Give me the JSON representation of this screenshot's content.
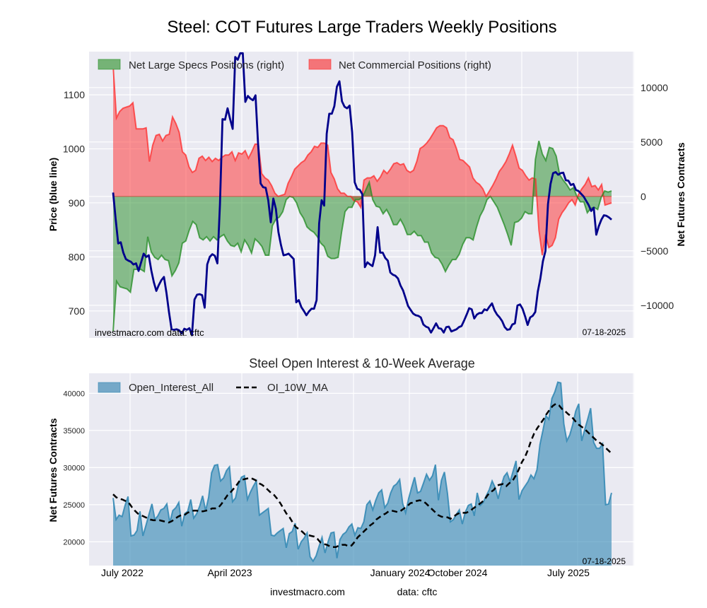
{
  "page": {
    "title": "Steel: COT Futures Large Traders Weekly Positions",
    "footer_site": "investmacro.com",
    "footer_source": "data: cftc"
  },
  "chart_data": [
    {
      "id": "positions",
      "type": "area",
      "title": "Steel: COT Futures Large Traders Weekly Positions",
      "ylabel_left": "Price (blue line)",
      "ylabel_right": "Net Futures Contracts",
      "ylim_left": [
        650,
        1180
      ],
      "ylim_right": [
        -13000,
        13300
      ],
      "yticks_left": [
        "700",
        "800",
        "900",
        "1000",
        "1100"
      ],
      "yticks_right": [
        "−10000",
        "−5000",
        "0",
        "5000",
        "10000"
      ],
      "ytick_values_left": [
        700,
        800,
        900,
        1000,
        1100
      ],
      "ytick_values_right": [
        -10000,
        -5000,
        0,
        5000,
        10000
      ],
      "grid": true,
      "legend_placement": "top-left",
      "legend": [
        "Net Large Specs Positions (right)",
        "Net Commercial Positions (right)"
      ],
      "annotation_left": "investmacro.com    data: cftc",
      "annotation_right": "07-18-2025",
      "colors": {
        "specs": "#228b22",
        "specs_fill": "#75b376",
        "commercial": "#ff2a2a",
        "commercial_fill": "#f47478",
        "price": "#00008b",
        "background": "#eaeaf2"
      },
      "series": [
        {
          "name": "Net Large Specs Positions (right)",
          "axis": "right",
          "values": [
            -12400,
            -7800,
            -8300,
            -8400,
            -8500,
            -8800,
            -6700,
            -6700,
            -6700,
            -6900,
            -3700,
            -5100,
            -5600,
            -5800,
            -5400,
            -5800,
            -5900,
            -7300,
            -6800,
            -6100,
            -4300,
            -4100,
            -3100,
            -2300,
            -2600,
            -3800,
            -4000,
            -3700,
            -4100,
            -3700,
            -4000,
            -3700,
            -3500,
            -4100,
            -4500,
            -4600,
            -4300,
            -5100,
            -4000,
            -4500,
            -5200,
            -3900,
            -4200,
            -4600,
            -5400,
            -5400,
            -2700,
            -2100,
            -1900,
            -1400,
            -300,
            0,
            -100,
            -600,
            -1500,
            -2000,
            -2800,
            -3100,
            -3300,
            -3700,
            -4300,
            -4600,
            -5500,
            -5700,
            -5700,
            -5600,
            -3300,
            -1400,
            -1000,
            -1000,
            -300,
            -300,
            -100,
            600,
            1300,
            -300,
            -900,
            -1000,
            -1600,
            -1200,
            -1800,
            -2600,
            -2600,
            -2100,
            -2700,
            -3500,
            -3500,
            -3200,
            -3600,
            -3600,
            -4200,
            -4200,
            -5200,
            -5600,
            -5700,
            -6200,
            -6900,
            -6300,
            -5800,
            -5800,
            -5300,
            -4400,
            -3800,
            -3800,
            -4000,
            -2800,
            -1800,
            -1200,
            -300,
            0,
            -500,
            -1000,
            -1800,
            -2600,
            -3500,
            -4500,
            -2400,
            -2300,
            -2000,
            -1400,
            -1600,
            -1600,
            3400,
            5100,
            3900,
            3300,
            4500,
            4400,
            3700,
            2000,
            1500,
            1100,
            600,
            800,
            0,
            -500,
            -500,
            -1500,
            -1100,
            -1000,
            -1200,
            -100,
            500,
            400,
            500
          ]
        },
        {
          "name": "Net Commercial Positions (right)",
          "axis": "right",
          "values": [
            12000,
            7200,
            7800,
            8100,
            8200,
            8300,
            8600,
            6200,
            6200,
            6200,
            6300,
            3200,
            4700,
            5600,
            5700,
            5100,
            5600,
            5700,
            7300,
            6700,
            5900,
            4100,
            3800,
            2700,
            2200,
            2400,
            3500,
            3700,
            3300,
            3600,
            3200,
            3500,
            3300,
            3600,
            3800,
            3800,
            4100,
            3300,
            4000,
            3900,
            4200,
            3500,
            4100,
            4800,
            4800,
            2100,
            1700,
            1500,
            1000,
            300,
            0,
            100,
            200,
            1200,
            1800,
            2500,
            2800,
            3100,
            3300,
            3800,
            4100,
            4600,
            4500,
            4900,
            4900,
            4700,
            2200,
            1600,
            700,
            300,
            300,
            0,
            0,
            -400,
            -500,
            -1000,
            1500,
            1700,
            1700,
            1900,
            1400,
            1800,
            2400,
            2100,
            2500,
            3000,
            3100,
            2900,
            3000,
            2400,
            2200,
            2400,
            3200,
            4400,
            4600,
            4900,
            5300,
            5800,
            6300,
            6500,
            6500,
            6300,
            5400,
            5200,
            4400,
            3400,
            3300,
            3000,
            2700,
            1700,
            1300,
            1100,
            700,
            0,
            500,
            1000,
            1600,
            2300,
            2700,
            3200,
            3900,
            4700,
            3700,
            2600,
            2400,
            1900,
            1500,
            1700,
            1600,
            -3100,
            -5400,
            -3500,
            -4700,
            -4500,
            -3800,
            -2100,
            -1500,
            -1100,
            -600,
            -300,
            -800,
            200,
            700,
            1100,
            1700,
            900,
            1000,
            600,
            1100,
            -800,
            -700,
            -600
          ]
        },
        {
          "name": "Price (blue line)",
          "axis": "left",
          "values": [
            919,
            870,
            825,
            827,
            808,
            796,
            793,
            791,
            786,
            788,
            774,
            790,
            806,
            800,
            803,
            775,
            753,
            737,
            748,
            757,
            763,
            733,
            697,
            666,
            665,
            666,
            664,
            658,
            667,
            665,
            668,
            655,
            721,
            730,
            731,
            729,
            706,
            786,
            800,
            805,
            802,
            788,
            897,
            1055,
            1054,
            1075,
            1055,
            1037,
            1170,
            1165,
            1177,
            1177,
            1087,
            1098,
            1093,
            1090,
            1099,
            1010,
            936,
            929,
            928,
            905,
            864,
            908,
            889,
            846,
            822,
            803,
            804,
            806,
            801,
            796,
            716,
            720,
            707,
            700,
            692,
            699,
            704,
            704,
            720,
            862,
            905,
            895,
            1028,
            1065,
            1065,
            1079,
            1115,
            1125,
            1088,
            1078,
            1075,
            1080,
            1031,
            938,
            926,
            924,
            916,
            781,
            790,
            786,
            783,
            803,
            855,
            808,
            808,
            798,
            793,
            771,
            767,
            765,
            760,
            747,
            738,
            724,
            709,
            702,
            695,
            692,
            691,
            688,
            675,
            671,
            669,
            660,
            668,
            677,
            668,
            667,
            660,
            670,
            671,
            662,
            664,
            666,
            670,
            672,
            682,
            693,
            705,
            703,
            686,
            693,
            696,
            696,
            703,
            701,
            708,
            714,
            701,
            693,
            688,
            681,
            670,
            665,
            666,
            675,
            677,
            710,
            712,
            704,
            690,
            674,
            688,
            691,
            698,
            736,
            760,
            792,
            811,
            898,
            935,
            955,
            957,
            952,
            955,
            956,
            942,
            941,
            933,
            935,
            924,
            922,
            917,
            912,
            904,
            896,
            885,
            891,
            841,
            857,
            869,
            877,
            876,
            873,
            869
          ]
        }
      ]
    },
    {
      "id": "open-interest",
      "type": "area",
      "title": "Steel Open Interest & 10-Week Average",
      "ylabel": "Net Futures Contracts",
      "ylim": [
        16800,
        42700
      ],
      "yticks": [
        "20000",
        "25000",
        "30000",
        "35000",
        "40000"
      ],
      "ytick_values": [
        20000,
        25000,
        30000,
        35000,
        40000
      ],
      "xticks": [
        "July 2022",
        "April 2023",
        "January 2024",
        "October 2024",
        "July 2025"
      ],
      "grid": true,
      "legend_placement": "top-left",
      "legend": [
        "Open_Interest_All",
        "OI_10W_MA"
      ],
      "annotation": "07-18-2025",
      "colors": {
        "oi_line": "#2e86b3",
        "oi_fill": "#75a8c8",
        "ma": "#000000",
        "background": "#eaeaf2"
      },
      "series": [
        {
          "name": "Open_Interest_All",
          "values": [
            25900,
            23000,
            23600,
            23400,
            24900,
            26100,
            20800,
            20900,
            21500,
            24100,
            20800,
            22200,
            23700,
            25100,
            23000,
            23500,
            24300,
            24500,
            25100,
            22600,
            24200,
            24600,
            25300,
            22100,
            23800,
            24100,
            25700,
            23200,
            23800,
            24800,
            26200,
            24200,
            26000,
            29300,
            30300,
            30400,
            28200,
            28600,
            29600,
            30100,
            25400,
            25900,
            27700,
            28700,
            28900,
            25700,
            26700,
            27500,
            28200,
            23600,
            23900,
            24200,
            24500,
            20900,
            20800,
            21200,
            21500,
            21800,
            19200,
            21100,
            21400,
            22500,
            19000,
            20000,
            20500,
            21200,
            18000,
            17400,
            18100,
            19400,
            20600,
            18500,
            20000,
            21200,
            21300,
            17800,
            20300,
            21000,
            21300,
            22000,
            22400,
            20900,
            21900,
            21800,
            22700,
            25000,
            25500,
            24300,
            25600,
            26600,
            27000,
            24600,
            25200,
            26600,
            27500,
            27800,
            28400,
            25200,
            23900,
            25800,
            27300,
            28700,
            26600,
            26800,
            27900,
            29100,
            28300,
            28900,
            30400,
            25600,
            28300,
            29400,
            26600,
            22700,
            23000,
            23700,
            24300,
            22400,
            24000,
            24900,
            25100,
            23500,
            26600,
            24900,
            25300,
            26200,
            27000,
            28200,
            27300,
            25800,
            27500,
            28800,
            29300,
            28100,
            29500,
            30900,
            25700,
            26900,
            27500,
            28100,
            29000,
            28500,
            29700,
            33100,
            35000,
            37000,
            36500,
            39300,
            40200,
            41500,
            41400,
            35900,
            33600,
            34400,
            35800,
            37600,
            38600,
            33600,
            35100,
            36500,
            38000,
            33400,
            32600,
            32600,
            33200,
            25000,
            25100,
            26600
          ]
        },
        {
          "name": "OI_10W_MA",
          "values": [
            26400,
            26000,
            25800,
            25700,
            25500,
            25300,
            24700,
            24200,
            23800,
            23600,
            23400,
            23200,
            23000,
            22900,
            22900,
            22900,
            22800,
            22700,
            22600,
            22800,
            23100,
            23400,
            23600,
            23600,
            23900,
            24100,
            24200,
            24200,
            24100,
            24100,
            24200,
            24300,
            24500,
            24500,
            24600,
            25100,
            25700,
            26300,
            26700,
            27200,
            27700,
            28300,
            28400,
            28500,
            28600,
            28500,
            28300,
            27900,
            27700,
            27400,
            27000,
            26600,
            26300,
            25800,
            25200,
            24500,
            23800,
            23300,
            22600,
            22000,
            21700,
            21400,
            21000,
            20900,
            20800,
            20700,
            20400,
            19900,
            19700,
            19600,
            19400,
            19300,
            19300,
            19500,
            19600,
            19600,
            19400,
            19500,
            20000,
            20600,
            21000,
            21400,
            21800,
            22200,
            22500,
            23000,
            23300,
            23600,
            23800,
            24100,
            24200,
            24100,
            24000,
            24200,
            24500,
            24800,
            25200,
            25300,
            25500,
            25600,
            25500,
            25200,
            24800,
            24400,
            24000,
            23600,
            23400,
            23300,
            23300,
            23100,
            23400,
            23700,
            23900,
            23900,
            23900,
            24100,
            24400,
            24700,
            25000,
            25300,
            25700,
            26300,
            26700,
            27000,
            27600,
            27700,
            27800,
            27500,
            27900,
            28200,
            28900,
            29700,
            30700,
            31400,
            32400,
            33600,
            34600,
            35300,
            35900,
            36500,
            37200,
            37800,
            38300,
            38600,
            38400,
            37900,
            37600,
            37200,
            36900,
            36400,
            35900,
            35600,
            35300,
            34900,
            34500,
            34100,
            33700,
            33400,
            33100,
            32700,
            32300,
            31900
          ]
        }
      ]
    }
  ]
}
